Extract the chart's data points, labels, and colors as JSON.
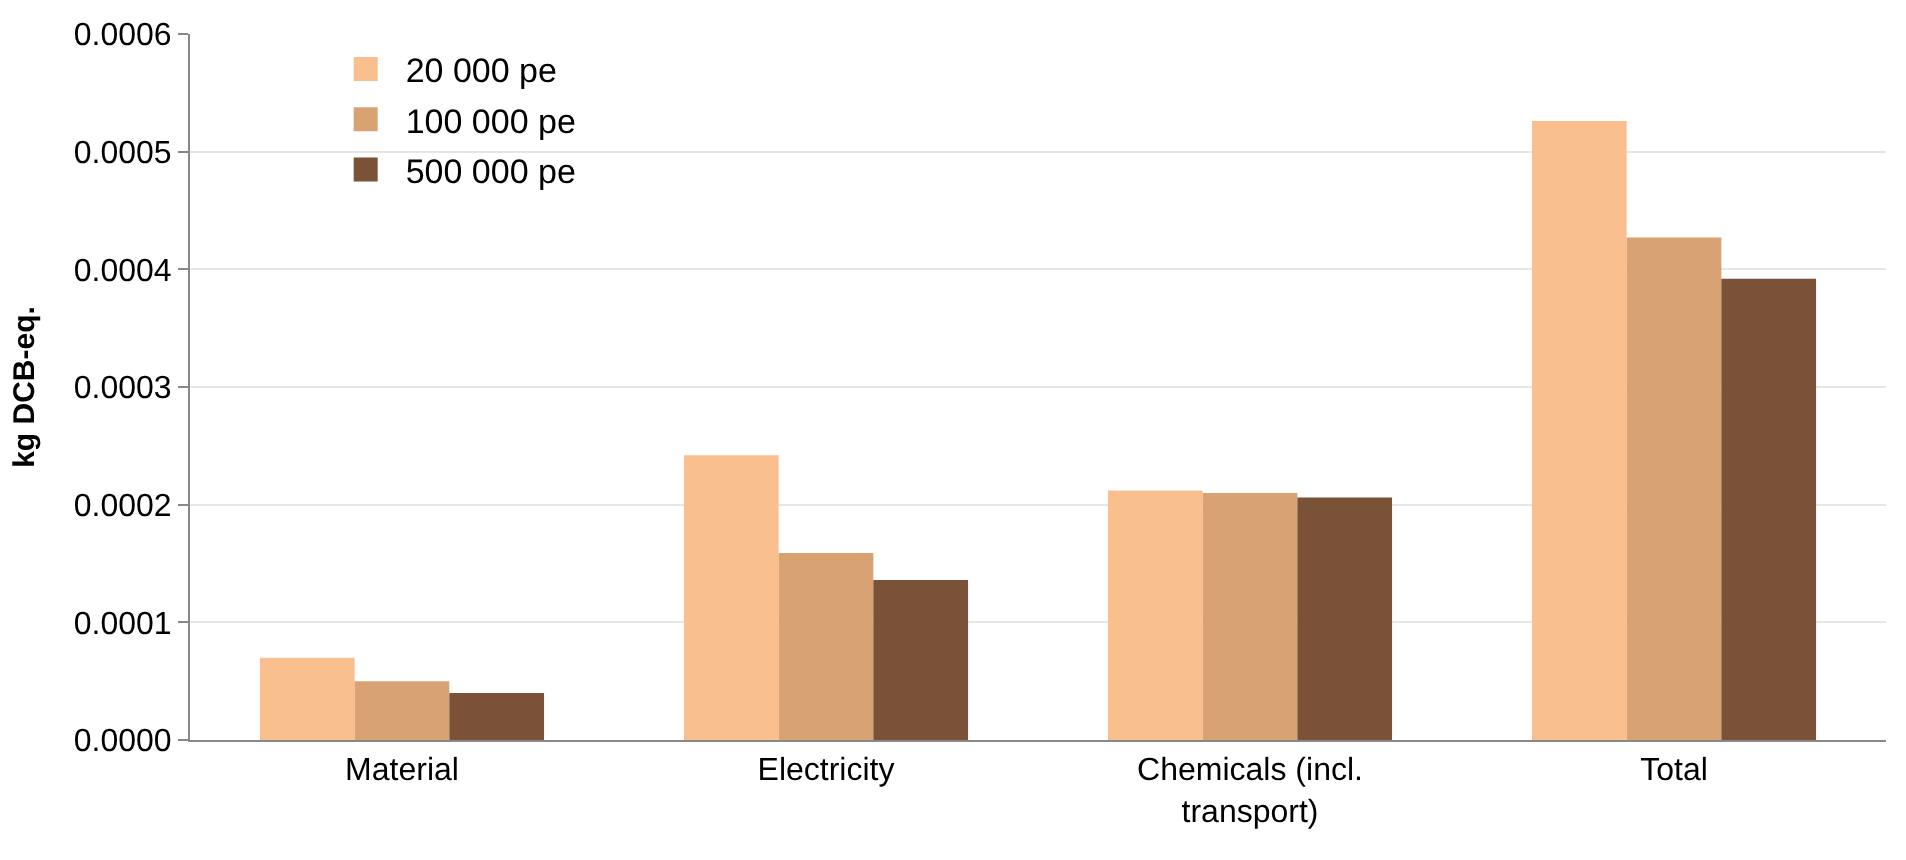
{
  "chart_data": {
    "type": "bar",
    "ylabel": "kg DCB-eq.",
    "categories": [
      "Material",
      "Electricity",
      "Chemicals (incl. transport)",
      "Total"
    ],
    "series": [
      {
        "name": "20 000 pe",
        "color": "#f9bf8f",
        "values": [
          7e-05,
          0.000242,
          0.000212,
          0.000526
        ]
      },
      {
        "name": "100 000 pe",
        "color": "#d9a273",
        "values": [
          5e-05,
          0.000159,
          0.00021,
          0.000427
        ]
      },
      {
        "name": "500 000 pe",
        "color": "#7a5238",
        "values": [
          4e-05,
          0.000136,
          0.000206,
          0.000392
        ]
      }
    ],
    "ylim": [
      0,
      0.0006
    ],
    "yticks": [
      {
        "value": 0,
        "label": "0.0000"
      },
      {
        "value": 0.0001,
        "label": "0.0001"
      },
      {
        "value": 0.0002,
        "label": "0.0002"
      },
      {
        "value": 0.0003,
        "label": "0.0003"
      },
      {
        "value": 0.0004,
        "label": "0.0004"
      },
      {
        "value": 0.0005,
        "label": "0.0005"
      },
      {
        "value": 0.0006,
        "label": "0.0006"
      }
    ],
    "grid": "y",
    "legend": "top left"
  }
}
